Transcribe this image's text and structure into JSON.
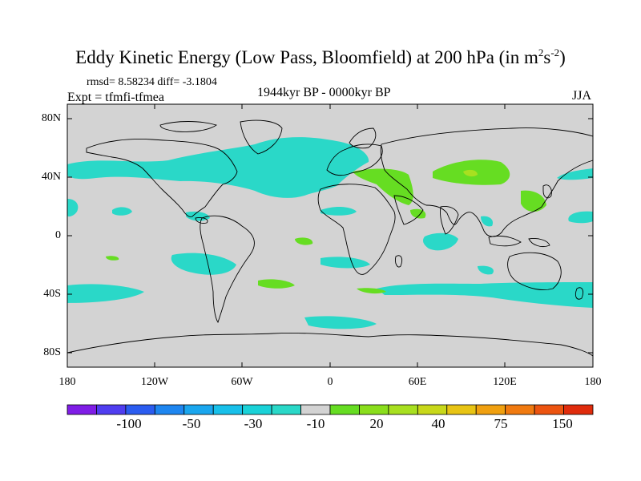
{
  "title": {
    "main": "Eddy Kinetic Energy (Low Pass, Bloomfield) at 200 hPa (in m",
    "exp1": "2",
    "mid": "s",
    "exp2": "-2",
    "close": ")"
  },
  "stats_text": "rmsd= 8.58234 diff= -3.1804",
  "experiment_text": "Expt = tfmfi-tfmea",
  "period_text": "1944kyr BP - 0000kyr BP",
  "season_text": "JJA",
  "colors": {
    "land_bg": "#d3d3d3",
    "negative_fill": "#2ad8c8",
    "positive_fill": "#66dd22",
    "positive_strong": "#a8e020"
  },
  "map": {
    "projection": "cylindrical-equidistant",
    "lon_range": [
      -180,
      180
    ],
    "lat_range": [
      -90,
      90
    ],
    "lat_ticks": [
      "80N",
      "40N",
      "0",
      "40S",
      "80S"
    ],
    "lon_ticks": [
      "180",
      "120W",
      "60W",
      "0",
      "60E",
      "120E",
      "180"
    ]
  },
  "colorbar": {
    "colors": [
      "#7f1de6",
      "#4f3df0",
      "#2b5cf0",
      "#1e86f0",
      "#1aa6ee",
      "#18c0ea",
      "#1ad2d8",
      "#2ad8c8",
      "#d3d3d3",
      "#66dd22",
      "#8ade1c",
      "#a8e020",
      "#c8d81a",
      "#e8c414",
      "#f0a010",
      "#f07a10",
      "#ec5410",
      "#e02c0c"
    ],
    "labels": [
      "-100",
      "-50",
      "-30",
      "-10",
      "20",
      "40",
      "75",
      "150"
    ]
  }
}
